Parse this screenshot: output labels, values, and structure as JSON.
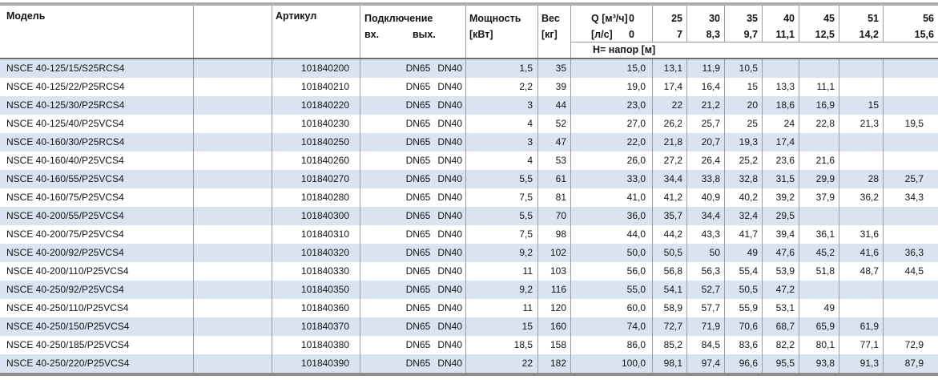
{
  "table": {
    "header": {
      "model": "Модель",
      "article": "Артикул",
      "connection": "Подключение",
      "conn_in": "вх.",
      "conn_out": "вых.",
      "power_line1": "Мощность",
      "power_line2": "[кВт]",
      "weight_line1": "Вес",
      "weight_line2": "[кг]",
      "q_line1_label": "Q [м³/ч]",
      "q_line1_value": "0",
      "q_line2_label": "[л/с]",
      "q_line2_value": "0",
      "head_banner": "H= напор [м]",
      "flow_columns": [
        {
          "m3h": "25",
          "ls": "7"
        },
        {
          "m3h": "30",
          "ls": "8,3"
        },
        {
          "m3h": "35",
          "ls": "9,7"
        },
        {
          "m3h": "40",
          "ls": "11,1"
        },
        {
          "m3h": "45",
          "ls": "12,5"
        },
        {
          "m3h": "51",
          "ls": "14,2"
        },
        {
          "m3h": "56",
          "ls": "15,6"
        }
      ]
    },
    "rows": [
      {
        "model": "NSCE 40-125/15/S25RCS4",
        "article": "101840200",
        "conn_in": "DN65",
        "conn_out": "DN40",
        "power_kw": "1,5",
        "weight_kg": "35",
        "h": [
          "15,0",
          "13,1",
          "11,9",
          "10,5",
          "",
          "",
          "",
          ""
        ]
      },
      {
        "model": "NSCE 40-125/22/P25RCS4",
        "article": "101840210",
        "conn_in": "DN65",
        "conn_out": "DN40",
        "power_kw": "2,2",
        "weight_kg": "39",
        "h": [
          "19,0",
          "17,4",
          "16,4",
          "15",
          "13,3",
          "11,1",
          "",
          ""
        ]
      },
      {
        "model": "NSCE 40-125/30/P25RCS4",
        "article": "101840220",
        "conn_in": "DN65",
        "conn_out": "DN40",
        "power_kw": "3",
        "weight_kg": "44",
        "h": [
          "23,0",
          "22",
          "21,2",
          "20",
          "18,6",
          "16,9",
          "15",
          ""
        ]
      },
      {
        "model": "NSCE 40-125/40/P25VCS4",
        "article": "101840230",
        "conn_in": "DN65",
        "conn_out": "DN40",
        "power_kw": "4",
        "weight_kg": "52",
        "h": [
          "27,0",
          "26,2",
          "25,7",
          "25",
          "24",
          "22,8",
          "21,3",
          "19,5"
        ]
      },
      {
        "model": "NSCE 40-160/30/P25RCS4",
        "article": "101840250",
        "conn_in": "DN65",
        "conn_out": "DN40",
        "power_kw": "3",
        "weight_kg": "47",
        "h": [
          "22,0",
          "21,8",
          "20,7",
          "19,3",
          "17,4",
          "",
          "",
          ""
        ]
      },
      {
        "model": "NSCE 40-160/40/P25VCS4",
        "article": "101840260",
        "conn_in": "DN65",
        "conn_out": "DN40",
        "power_kw": "4",
        "weight_kg": "53",
        "h": [
          "26,0",
          "27,2",
          "26,4",
          "25,2",
          "23,6",
          "21,6",
          "",
          ""
        ]
      },
      {
        "model": "NSCE 40-160/55/P25VCS4",
        "article": "101840270",
        "conn_in": "DN65",
        "conn_out": "DN40",
        "power_kw": "5,5",
        "weight_kg": "61",
        "h": [
          "33,0",
          "34,4",
          "33,8",
          "32,8",
          "31,5",
          "29,9",
          "28",
          "25,7"
        ]
      },
      {
        "model": "NSCE 40-160/75/P25VCS4",
        "article": "101840280",
        "conn_in": "DN65",
        "conn_out": "DN40",
        "power_kw": "7,5",
        "weight_kg": "81",
        "h": [
          "41,0",
          "41,2",
          "40,9",
          "40,2",
          "39,2",
          "37,9",
          "36,2",
          "34,3"
        ]
      },
      {
        "model": "NSCE 40-200/55/P25VCS4",
        "article": "101840300",
        "conn_in": "DN65",
        "conn_out": "DN40",
        "power_kw": "5,5",
        "weight_kg": "70",
        "h": [
          "36,0",
          "35,7",
          "34,4",
          "32,4",
          "29,5",
          "",
          "",
          ""
        ]
      },
      {
        "model": "NSCE 40-200/75/P25VCS4",
        "article": "101840310",
        "conn_in": "DN65",
        "conn_out": "DN40",
        "power_kw": "7,5",
        "weight_kg": "98",
        "h": [
          "44,0",
          "44,2",
          "43,3",
          "41,7",
          "39,4",
          "36,1",
          "31,6",
          ""
        ]
      },
      {
        "model": "NSCE 40-200/92/P25VCS4",
        "article": "101840320",
        "conn_in": "DN65",
        "conn_out": "DN40",
        "power_kw": "9,2",
        "weight_kg": "102",
        "h": [
          "50,0",
          "50,5",
          "50",
          "49",
          "47,6",
          "45,2",
          "41,6",
          "36,3"
        ]
      },
      {
        "model": "NSCE 40-200/110/P25VCS4",
        "article": "101840330",
        "conn_in": "DN65",
        "conn_out": "DN40",
        "power_kw": "11",
        "weight_kg": "103",
        "h": [
          "56,0",
          "56,8",
          "56,3",
          "55,4",
          "53,9",
          "51,8",
          "48,7",
          "44,5"
        ]
      },
      {
        "model": "NSCE 40-250/92/P25VCS4",
        "article": "101840350",
        "conn_in": "DN65",
        "conn_out": "DN40",
        "power_kw": "9,2",
        "weight_kg": "116",
        "h": [
          "55,0",
          "54,1",
          "52,7",
          "50,5",
          "47,2",
          "",
          "",
          ""
        ]
      },
      {
        "model": "NSCE 40-250/110/P25VCS4",
        "article": "101840360",
        "conn_in": "DN65",
        "conn_out": "DN40",
        "power_kw": "11",
        "weight_kg": "120",
        "h": [
          "60,0",
          "58,9",
          "57,7",
          "55,9",
          "53,1",
          "49",
          "",
          ""
        ]
      },
      {
        "model": "NSCE 40-250/150/P25VCS4",
        "article": "101840370",
        "conn_in": "DN65",
        "conn_out": "DN40",
        "power_kw": "15",
        "weight_kg": "160",
        "h": [
          "74,0",
          "72,7",
          "71,9",
          "70,6",
          "68,7",
          "65,9",
          "61,9",
          ""
        ]
      },
      {
        "model": "NSCE 40-250/185/P25VCS4",
        "article": "101840380",
        "conn_in": "DN65",
        "conn_out": "DN40",
        "power_kw": "18,5",
        "weight_kg": "158",
        "h": [
          "86,0",
          "85,2",
          "84,5",
          "83,6",
          "82,2",
          "80,1",
          "77,1",
          "72,9"
        ]
      },
      {
        "model": "NSCE 40-250/220/P25VCS4",
        "article": "101840390",
        "conn_in": "DN65",
        "conn_out": "DN40",
        "power_kw": "22",
        "weight_kg": "182",
        "h": [
          "100,0",
          "98,1",
          "97,4",
          "96,6",
          "95,5",
          "93,8",
          "91,3",
          "87,9"
        ]
      }
    ]
  },
  "colors": {
    "stripe": "#dae4f0",
    "grid_line": "#9c9c9c",
    "heavy_line": "#6f6f6f",
    "top_band": "#adadad",
    "bottom_band": "#8c8c8c"
  }
}
